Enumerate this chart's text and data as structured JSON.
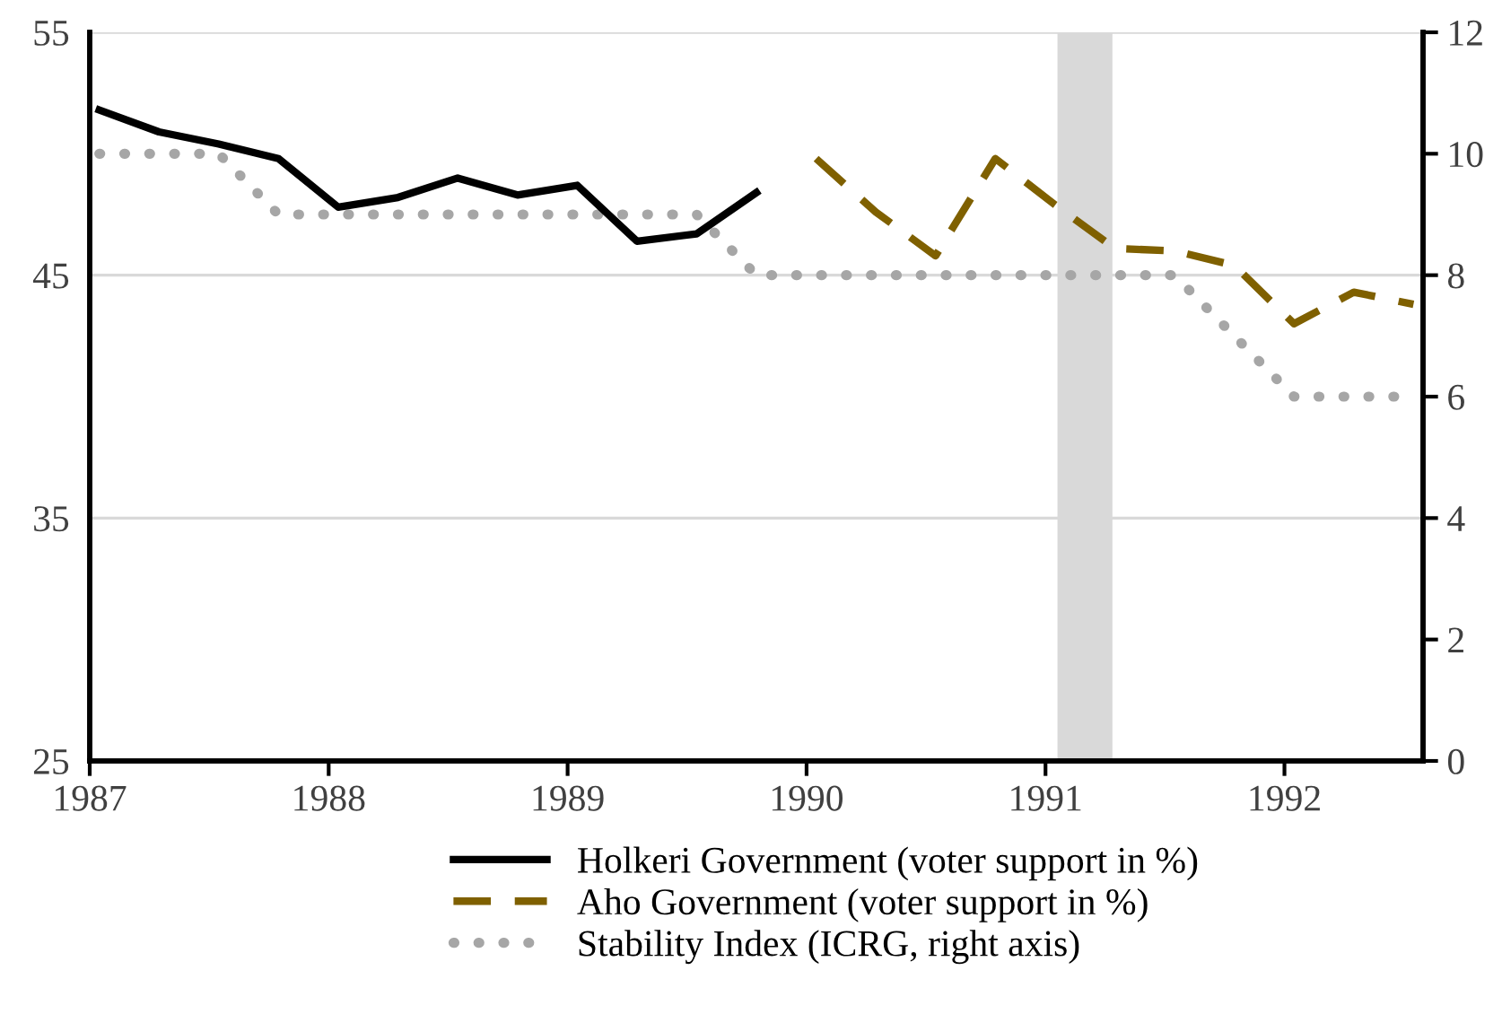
{
  "chart_data": {
    "type": "line",
    "series": [
      {
        "name": "Holkeri Government (voter support in %)",
        "color": "#000000",
        "line_style": "solid",
        "x": [
          1987.04,
          1987.29,
          1987.54,
          1987.79,
          1988.04,
          1988.29,
          1988.54,
          1988.79,
          1989.04,
          1989.29,
          1989.54,
          1989.79
        ],
        "values": [
          51.8,
          50.9,
          50.4,
          49.8,
          47.8,
          48.2,
          49.0,
          48.3,
          48.7,
          46.4,
          46.7,
          48.4
        ]
      },
      {
        "name": "Aho Government (voter support in %)",
        "color": "#7f6000",
        "line_style": "dashed",
        "x": [
          1990.04,
          1990.29,
          1990.54,
          1990.79,
          1991.04,
          1991.29,
          1991.54,
          1991.79,
          1992.04,
          1992.29,
          1992.54
        ],
        "values": [
          49.8,
          47.6,
          45.8,
          49.8,
          47.9,
          46.1,
          46.0,
          45.4,
          43.0,
          44.3,
          43.8
        ]
      },
      {
        "name": "Stability Index (ICRG, right axis)",
        "color": "#a6a6a6",
        "line_style": "dotted",
        "axis": "y2",
        "x": [
          1987.04,
          1987.29,
          1987.54,
          1987.79,
          1988.04,
          1988.54,
          1989.04,
          1989.54,
          1989.79,
          1990.29,
          1990.79,
          1991.29,
          1991.54,
          1991.79,
          1992.04,
          1992.29,
          1992.54
        ],
        "values": [
          10,
          10,
          10,
          9,
          9,
          9,
          9,
          9,
          8,
          8,
          8,
          8,
          8,
          7,
          6,
          6,
          6
        ]
      }
    ],
    "xlim": [
      1987,
      1992.58
    ],
    "xticks": [
      1987,
      1988,
      1989,
      1990,
      1991,
      1992
    ],
    "ylim": [
      25,
      55
    ],
    "yticks": [
      25,
      35,
      45,
      55
    ],
    "y2lim": [
      0,
      12
    ],
    "y2ticks": [
      0,
      2,
      4,
      6,
      8,
      10,
      12
    ],
    "bands": [
      {
        "axis": "x",
        "from": 1991.05,
        "to": 1991.28,
        "color": "#d9d9d9"
      }
    ],
    "grid": "y",
    "legend": "bottom"
  }
}
